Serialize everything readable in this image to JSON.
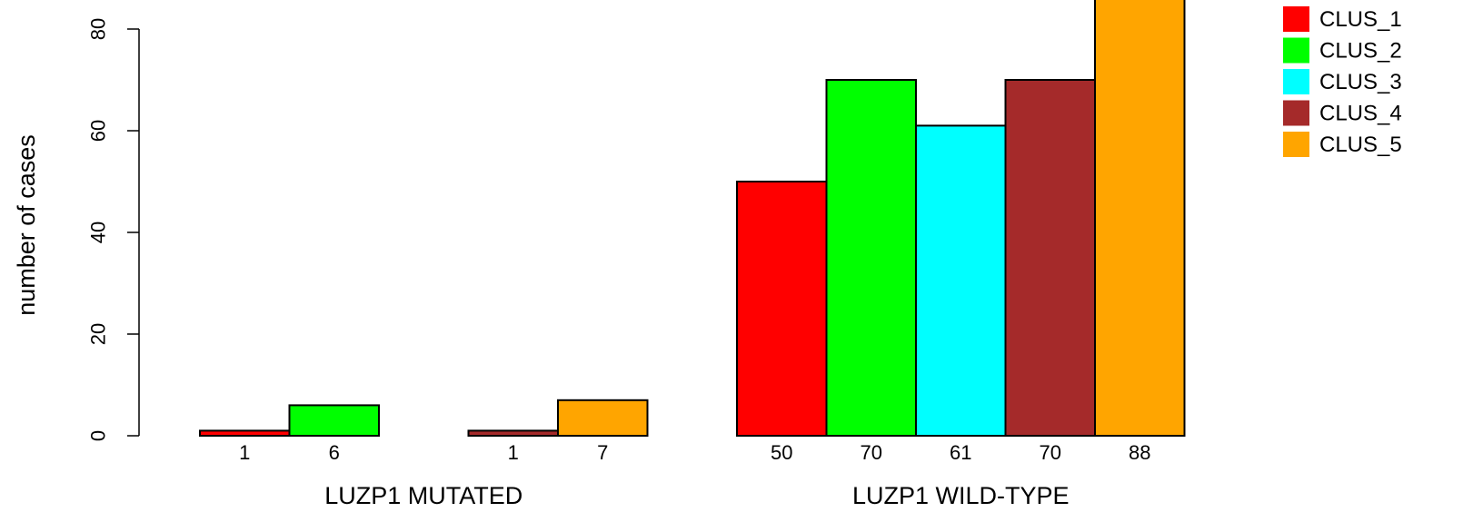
{
  "chart_data": {
    "type": "bar",
    "ylabel": "number of cases",
    "ylim": [
      0,
      88
    ],
    "yticks": [
      0,
      20,
      40,
      60,
      80
    ],
    "groups": [
      {
        "label": "LUZP1 MUTATED",
        "values": [
          1,
          6,
          0,
          1,
          7
        ],
        "count_labels": [
          "1",
          "6",
          "",
          "1",
          "7"
        ]
      },
      {
        "label": "LUZP1 WILD-TYPE",
        "values": [
          50,
          70,
          61,
          70,
          88
        ],
        "count_labels": [
          "50",
          "70",
          "61",
          "70",
          "88"
        ]
      }
    ],
    "series": [
      {
        "name": "CLUS_1",
        "color": "#ff0000"
      },
      {
        "name": "CLUS_2",
        "color": "#00ff00"
      },
      {
        "name": "CLUS_3",
        "color": "#00ffff"
      },
      {
        "name": "CLUS_4",
        "color": "#a52a2a"
      },
      {
        "name": "CLUS_5",
        "color": "#ffa500"
      }
    ],
    "legend_position": "top-right",
    "grid": false
  }
}
